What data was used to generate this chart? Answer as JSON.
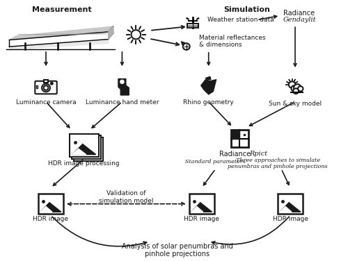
{
  "title_measurement": "Measurement",
  "title_simulation": "Simulation",
  "bg_color": "#ffffff",
  "text_color": "#1a1a1a",
  "arrow_color": "#1a1a1a",
  "labels": {
    "weather_station": "Weather station data",
    "material": "Material reflectances\n& dimensions",
    "radiance_gendaylit_1": "Radiance",
    "radiance_gendaylit_2": "Gendaylit",
    "luminance_camera": "Luminance camera",
    "luminance_hand": "Luminance hand meter",
    "rhino": "Rhino geometry",
    "sun_sky": "Sun & sky model",
    "hdr_processing": "HDR image processing",
    "radiance_rpict_1": "Radiance ",
    "radiance_rpict_2": "Rpict",
    "standard_params": "Standard parameters",
    "three_approaches": "Three approaches to simulate\npenumbras and pinhole projections",
    "hdr_left": "HDR image",
    "hdr_mid": "HDR image",
    "hdr_right": "HDR image",
    "validation": "Validation of\nsimulation model",
    "analysis": "Analysis of solar penumbras and\npinhole projections"
  }
}
